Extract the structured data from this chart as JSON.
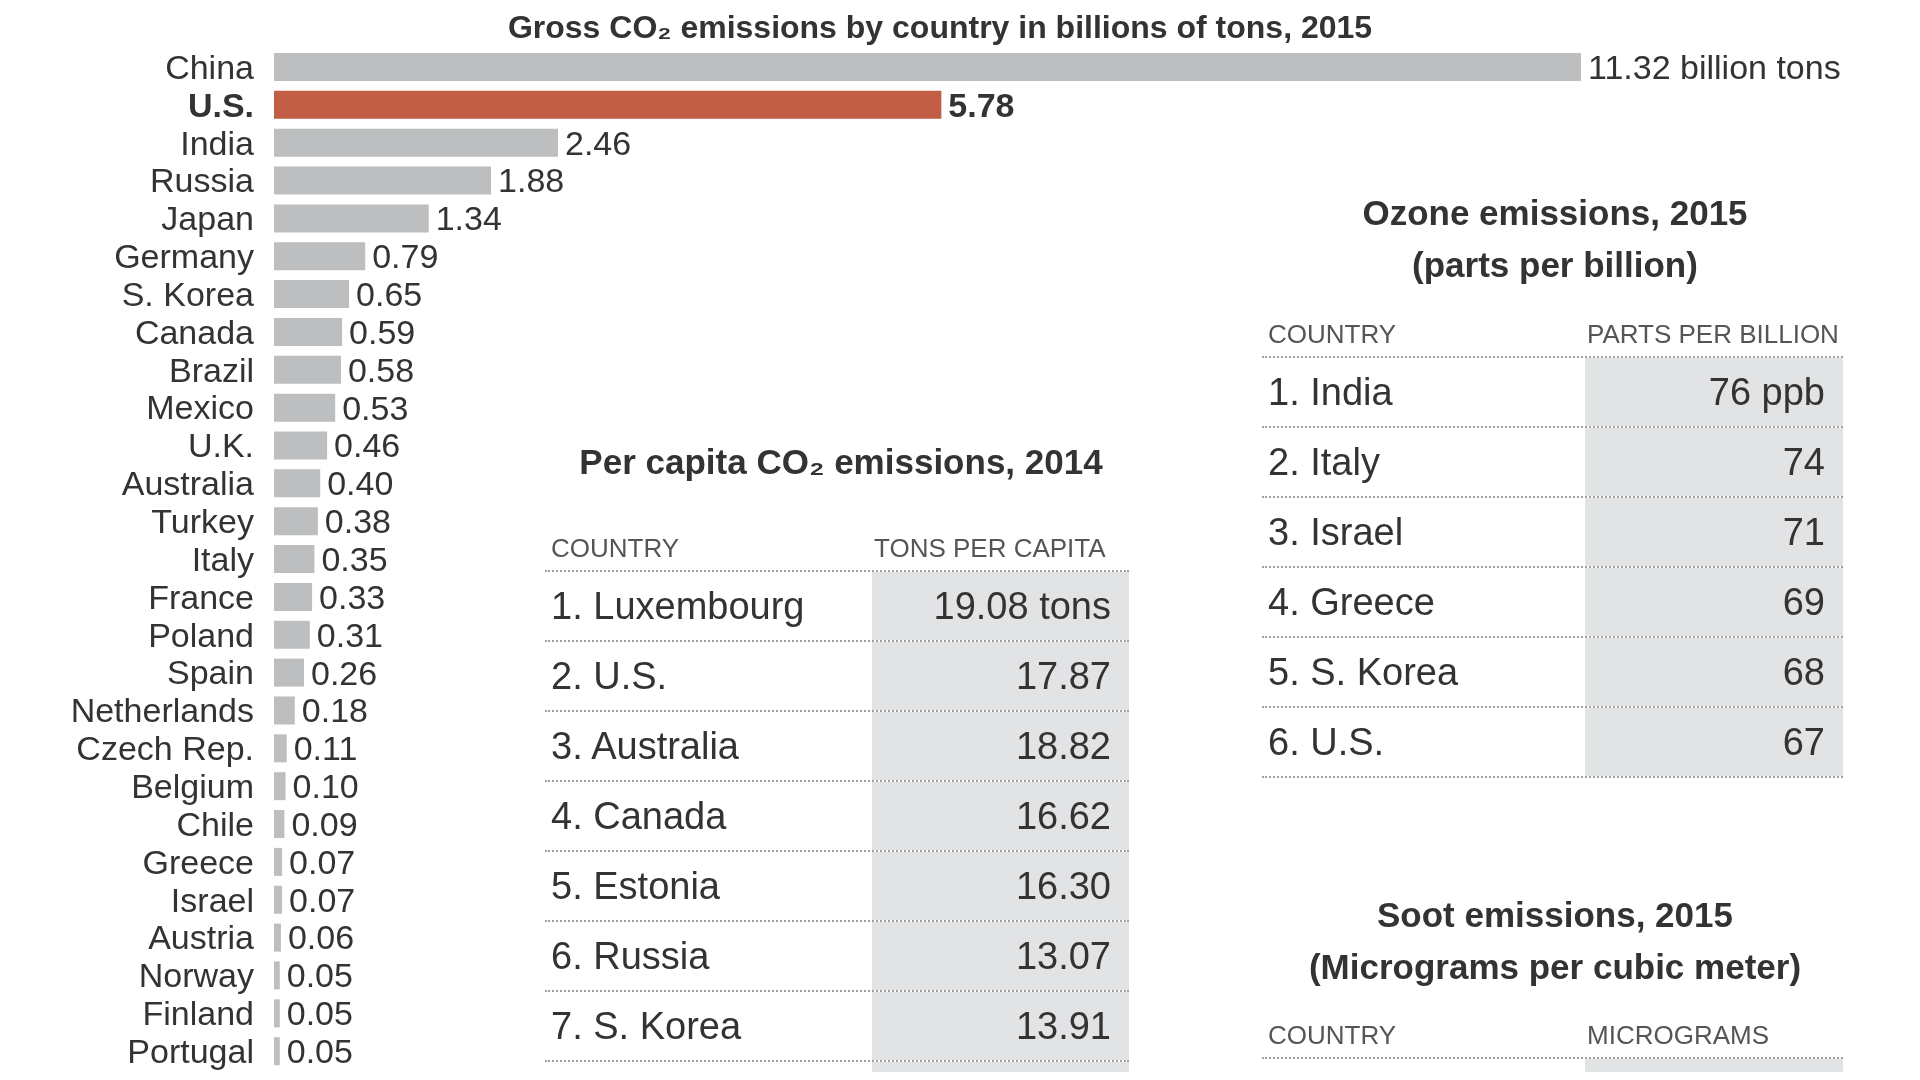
{
  "chart_data": [
    {
      "type": "bar",
      "title": "Gross CO₂ emissions by country in billions of tons, 2015",
      "orientation": "horizontal",
      "tick_labels": "y",
      "categories": [
        "China",
        "U.S.",
        "India",
        "Russia",
        "Japan",
        "Germany",
        "S. Korea",
        "Canada",
        "Brazil",
        "Mexico",
        "U.K.",
        "Australia",
        "Turkey",
        "Italy",
        "France",
        "Poland",
        "Spain",
        "Netherlands",
        "Czech Rep.",
        "Belgium",
        "Chile",
        "Greece",
        "Israel",
        "Austria",
        "Norway",
        "Finland",
        "Portugal"
      ],
      "values": [
        11.32,
        5.78,
        2.46,
        1.88,
        1.34,
        0.79,
        0.65,
        0.59,
        0.58,
        0.53,
        0.46,
        0.4,
        0.38,
        0.35,
        0.33,
        0.31,
        0.26,
        0.18,
        0.11,
        0.1,
        0.09,
        0.07,
        0.07,
        0.06,
        0.05,
        0.05,
        0.05
      ],
      "value_labels": [
        "11.32 billion tons",
        "5.78",
        "2.46",
        "1.88",
        "1.34",
        "0.79",
        "0.65",
        "0.59",
        "0.58",
        "0.53",
        "0.46",
        "0.40",
        "0.38",
        "0.35",
        "0.33",
        "0.31",
        "0.26",
        "0.18",
        "0.11",
        "0.10",
        "0.09",
        "0.07",
        "0.07",
        "0.06",
        "0.05",
        "0.05",
        "0.05"
      ],
      "colors": [
        "#bdbec0",
        "#c25e45",
        "#bdbec0",
        "#bdbec0",
        "#bdbec0",
        "#bdbec0",
        "#bdbec0",
        "#bdbec0",
        "#bdbec0",
        "#bdbec0",
        "#bdbec0",
        "#bdbec0",
        "#bdbec0",
        "#bdbec0",
        "#bdbec0",
        "#bdbec0",
        "#bdbec0",
        "#bdbec0",
        "#bdbec0",
        "#bdbec0",
        "#bdbec0",
        "#bdbec0",
        "#bdbec0",
        "#bdbec0",
        "#bdbec0",
        "#bdbec0",
        "#bdbec0"
      ]
    },
    {
      "type": "other",
      "title": "Per capita CO₂ emissions, 2014",
      "annotations": [
        "COUNTRY",
        "TONS PER CAPITA"
      ],
      "categories": [
        "1. Luxembourg",
        "2. U.S.",
        "3. Australia",
        "4. Canada",
        "5. Estonia",
        "6. Russia",
        "7. S. Korea"
      ],
      "values": [
        19.08,
        17.87,
        18.82,
        16.62,
        16.3,
        13.07,
        13.91
      ],
      "value_labels": [
        "19.08 tons",
        "17.87",
        "18.82",
        "16.62",
        "16.30",
        "13.07",
        "13.91"
      ]
    },
    {
      "type": "other",
      "title": "Ozone emissions, 2015",
      "subtitle": "(parts per billion)",
      "annotations": [
        "COUNTRY",
        "PARTS PER BILLION"
      ],
      "categories": [
        "1. India",
        "2. Italy",
        "3. Israel",
        "4. Greece",
        "5. S. Korea",
        "6. U.S."
      ],
      "values": [
        76,
        74,
        71,
        69,
        68,
        67
      ],
      "value_labels": [
        "76 ppb",
        "74",
        "71",
        "69",
        "68",
        "67"
      ]
    },
    {
      "type": "other",
      "title": "Soot emissions, 2015",
      "subtitle": "(Micrograms per cubic meter)",
      "annotations": [
        "COUNTRY",
        "MICROGRAMS"
      ]
    }
  ]
}
